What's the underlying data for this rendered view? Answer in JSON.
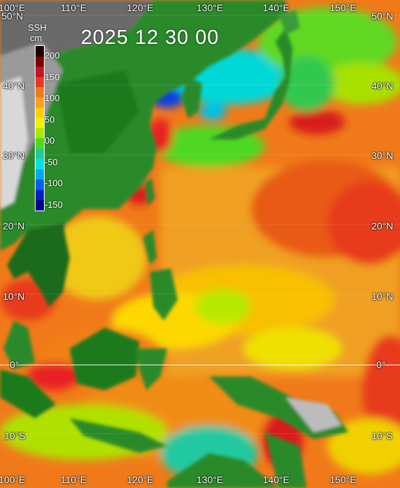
{
  "map": {
    "title": "2025 12 30 00",
    "colorbar": {
      "title_line1": "SSH",
      "title_line2": "cm",
      "ticks": [
        "200",
        "150",
        "100",
        "50",
        "00",
        "-50",
        "-100",
        "-150"
      ],
      "colors_top_to_bottom": [
        "#1a0000",
        "#7a0000",
        "#c8102e",
        "#e83a1e",
        "#f07a1a",
        "#f8a020",
        "#fcd000",
        "#f0f000",
        "#a8e800",
        "#50d820",
        "#20c8a0",
        "#00e0e8",
        "#00a8f0",
        "#0060f0",
        "#0020c8",
        "#000090"
      ]
    },
    "lon_labels_top": [
      "100°E",
      "110°E",
      "120°E",
      "130°E",
      "140°E",
      "150°E"
    ],
    "lon_labels_bottom": [
      "100°E",
      "110°E",
      "120°E",
      "130°E",
      "140°E",
      "150°E"
    ],
    "lat_labels_left": [
      "50°N",
      "40°N",
      "30°N",
      "20°N",
      "10°N",
      "0°",
      "10°S"
    ],
    "lat_labels_right": [
      "50°N",
      "40°N",
      "30°N",
      "20°N",
      "10°N",
      "0°",
      "10°S"
    ]
  }
}
